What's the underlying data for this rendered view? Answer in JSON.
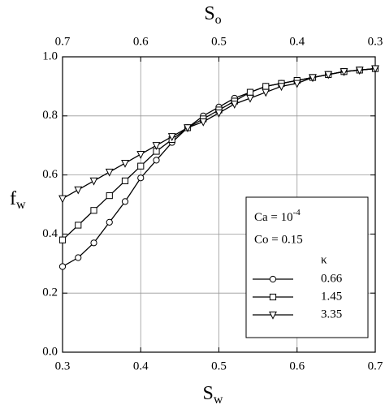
{
  "chart_data": {
    "type": "line",
    "xlabel": {
      "text": "S",
      "subscript": "w"
    },
    "x2label": {
      "text": "S",
      "subscript": "o"
    },
    "ylabel": {
      "text": "f",
      "subscript": "w"
    },
    "x": [
      0.3,
      0.32,
      0.34,
      0.36,
      0.38,
      0.4,
      0.42,
      0.44,
      0.46,
      0.48,
      0.5,
      0.52,
      0.54,
      0.56,
      0.58,
      0.6,
      0.62,
      0.64,
      0.66,
      0.68,
      0.7
    ],
    "series": [
      {
        "name": "0.66",
        "color": "#000000",
        "marker": "circle",
        "values": [
          0.29,
          0.32,
          0.37,
          0.44,
          0.51,
          0.59,
          0.65,
          0.71,
          0.76,
          0.8,
          0.83,
          0.86,
          0.88,
          0.9,
          0.91,
          0.92,
          0.93,
          0.94,
          0.95,
          0.955,
          0.96
        ]
      },
      {
        "name": "1.45",
        "color": "#000000",
        "marker": "square",
        "values": [
          0.38,
          0.43,
          0.48,
          0.53,
          0.58,
          0.63,
          0.68,
          0.72,
          0.76,
          0.79,
          0.82,
          0.85,
          0.88,
          0.9,
          0.91,
          0.92,
          0.93,
          0.94,
          0.95,
          0.955,
          0.96
        ]
      },
      {
        "name": "3.35",
        "color": "#000000",
        "marker": "triangle-down",
        "values": [
          0.52,
          0.55,
          0.58,
          0.61,
          0.64,
          0.67,
          0.7,
          0.73,
          0.76,
          0.78,
          0.81,
          0.84,
          0.86,
          0.88,
          0.9,
          0.91,
          0.93,
          0.94,
          0.95,
          0.955,
          0.96
        ]
      }
    ],
    "xlim": [
      0.3,
      0.7
    ],
    "xticks": [
      0.3,
      0.4,
      0.5,
      0.6,
      0.7
    ],
    "x2lim": [
      0.7,
      0.3
    ],
    "x2ticks": [
      0.7,
      0.6,
      0.5,
      0.4,
      0.3
    ],
    "ylim": [
      0,
      1
    ],
    "yticks": [
      {
        "value": 0,
        "label": "0.0"
      },
      0.2,
      0.4,
      0.6,
      0.8,
      {
        "value": 1,
        "label": "1.0"
      }
    ],
    "grid": true,
    "annotations": [
      {
        "text": "Ca = 10",
        "superscript": "-4"
      },
      {
        "text": "Co = 0.15"
      }
    ],
    "legend_title": "κ",
    "legend": "lower right"
  }
}
